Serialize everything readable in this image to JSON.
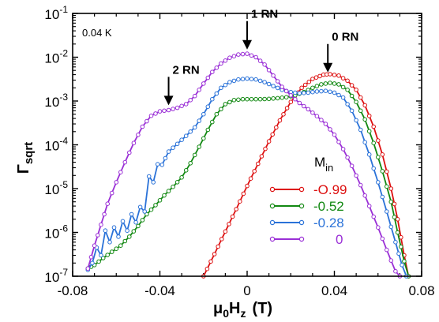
{
  "chart_data": {
    "type": "line",
    "xlabel": {
      "mu": "μ",
      "sub0": "0",
      "H": "H",
      "subz": "z",
      "unit": "(T)"
    },
    "ylabel": {
      "main": "Γ",
      "sub": "sqrt"
    },
    "xlim": [
      -0.08,
      0.08
    ],
    "ylim": [
      1e-07,
      0.1
    ],
    "y_scale": "log",
    "x_ticks": [
      {
        "value": -0.08,
        "label": "-0.08"
      },
      {
        "value": -0.04,
        "label": "-0.04"
      },
      {
        "value": 0,
        "label": "0"
      },
      {
        "value": 0.04,
        "label": "0.04"
      },
      {
        "value": 0.08,
        "label": "0.08"
      }
    ],
    "y_ticks": [
      {
        "value": 1e-07,
        "base": "10",
        "exp": "-7"
      },
      {
        "value": 1e-06,
        "base": "10",
        "exp": "-6"
      },
      {
        "value": 1e-05,
        "base": "10",
        "exp": "-5"
      },
      {
        "value": 0.0001,
        "base": "10",
        "exp": "-4"
      },
      {
        "value": 0.001,
        "base": "10",
        "exp": "-3"
      },
      {
        "value": 0.01,
        "base": "10",
        "exp": "-2"
      },
      {
        "value": 0.1,
        "base": "10",
        "exp": "-1"
      }
    ],
    "temperature_label": "0.04  K",
    "legend": {
      "title_main": "M",
      "title_sub": "in",
      "placement": "lower-right"
    },
    "annotations": [
      {
        "text": "2 RN",
        "x": -0.036,
        "y": 0.0008
      },
      {
        "text": "1 RN",
        "x": 0.0,
        "y": 0.015
      },
      {
        "text": "0 RN",
        "x": 0.037,
        "y": 0.0045
      }
    ],
    "series": [
      {
        "name": "-O.99",
        "color": "#dd1111",
        "points": [
          [
            -0.02,
            1e-07
          ],
          [
            -0.015,
            3.2e-07
          ],
          [
            -0.01,
            1.05e-06
          ],
          [
            -0.005,
            3.4e-06
          ],
          [
            0,
            1.15e-05
          ],
          [
            0.005,
            3.7e-05
          ],
          [
            0.01,
            0.00012
          ],
          [
            0.015,
            0.00036
          ],
          [
            0.02,
            0.00095
          ],
          [
            0.025,
            0.002
          ],
          [
            0.03,
            0.0032
          ],
          [
            0.035,
            0.004
          ],
          [
            0.038,
            0.0041
          ],
          [
            0.042,
            0.0038
          ],
          [
            0.046,
            0.0029
          ],
          [
            0.05,
            0.0018
          ],
          [
            0.054,
            0.0008
          ],
          [
            0.058,
            0.00026
          ],
          [
            0.062,
            6e-05
          ],
          [
            0.066,
            1e-05
          ],
          [
            0.069,
            2e-06
          ],
          [
            0.072,
            3e-07
          ],
          [
            0.074,
            1e-07
          ]
        ]
      },
      {
        "name": "-0.52",
        "color": "#118811",
        "points": [
          [
            -0.073,
            1.5e-07
          ],
          [
            -0.07,
            1.8e-07
          ],
          [
            -0.066,
            2.6e-07
          ],
          [
            -0.062,
            3.6e-07
          ],
          [
            -0.058,
            5e-07
          ],
          [
            -0.054,
            8e-07
          ],
          [
            -0.05,
            1.4e-06
          ],
          [
            -0.046,
            2.6e-06
          ],
          [
            -0.042,
            4.2e-06
          ],
          [
            -0.038,
            7e-06
          ],
          [
            -0.034,
            1.1e-05
          ],
          [
            -0.03,
            1.8e-05
          ],
          [
            -0.026,
            3.8e-05
          ],
          [
            -0.022,
            9e-05
          ],
          [
            -0.018,
            0.00022
          ],
          [
            -0.014,
            0.0005
          ],
          [
            -0.01,
            0.00085
          ],
          [
            -0.006,
            0.00105
          ],
          [
            -0.002,
            0.0011
          ],
          [
            0.002,
            0.0011
          ],
          [
            0.006,
            0.0011
          ],
          [
            0.01,
            0.00112
          ],
          [
            0.014,
            0.00116
          ],
          [
            0.018,
            0.00122
          ],
          [
            0.022,
            0.00135
          ],
          [
            0.026,
            0.0016
          ],
          [
            0.03,
            0.002
          ],
          [
            0.034,
            0.0024
          ],
          [
            0.038,
            0.0026
          ],
          [
            0.042,
            0.0024
          ],
          [
            0.046,
            0.0018
          ],
          [
            0.05,
            0.00095
          ],
          [
            0.054,
            0.00038
          ],
          [
            0.058,
            0.00011
          ],
          [
            0.062,
            2.5e-05
          ],
          [
            0.066,
            5e-06
          ],
          [
            0.069,
            1e-06
          ],
          [
            0.072,
            2.2e-07
          ],
          [
            0.074,
            1e-07
          ]
        ]
      },
      {
        "name": "-0.28",
        "color": "#2a72d8",
        "points": [
          [
            -0.073,
            1.4e-07
          ],
          [
            -0.071,
            2e-07
          ],
          [
            -0.069,
            4.5e-07
          ],
          [
            -0.067,
            3e-07
          ],
          [
            -0.065,
            1.1e-06
          ],
          [
            -0.063,
            6e-07
          ],
          [
            -0.061,
            1.3e-06
          ],
          [
            -0.059,
            8e-07
          ],
          [
            -0.057,
            1.8e-06
          ],
          [
            -0.055,
            1.1e-06
          ],
          [
            -0.053,
            2.6e-06
          ],
          [
            -0.051,
            1.7e-06
          ],
          [
            -0.049,
            3.8e-06
          ],
          [
            -0.047,
            3e-06
          ],
          [
            -0.045,
            1.9e-05
          ],
          [
            -0.043,
            1.4e-05
          ],
          [
            -0.041,
            3.6e-05
          ],
          [
            -0.039,
            3.5e-05
          ],
          [
            -0.036,
            7e-05
          ],
          [
            -0.032,
            0.000105
          ],
          [
            -0.028,
            0.00016
          ],
          [
            -0.024,
            0.00025
          ],
          [
            -0.02,
            0.0005
          ],
          [
            -0.016,
            0.0011
          ],
          [
            -0.012,
            0.002
          ],
          [
            -0.008,
            0.0027
          ],
          [
            -0.004,
            0.0031
          ],
          [
            0,
            0.00325
          ],
          [
            0.004,
            0.0031
          ],
          [
            0.008,
            0.0027
          ],
          [
            0.012,
            0.0022
          ],
          [
            0.016,
            0.0018
          ],
          [
            0.02,
            0.0016
          ],
          [
            0.024,
            0.0015
          ],
          [
            0.028,
            0.00155
          ],
          [
            0.032,
            0.00165
          ],
          [
            0.036,
            0.0017
          ],
          [
            0.04,
            0.00155
          ],
          [
            0.044,
            0.0012
          ],
          [
            0.048,
            0.0006
          ],
          [
            0.052,
            0.00022
          ],
          [
            0.056,
            6e-05
          ],
          [
            0.06,
            1.4e-05
          ],
          [
            0.064,
            3e-06
          ],
          [
            0.068,
            6e-07
          ],
          [
            0.071,
            1.8e-07
          ],
          [
            0.073,
            1e-07
          ]
        ]
      },
      {
        "name": "0",
        "color": "#9a2fd6",
        "points": [
          [
            -0.073,
            1.5e-07
          ],
          [
            -0.07,
            5e-07
          ],
          [
            -0.067,
            1.5e-06
          ],
          [
            -0.064,
            4.5e-06
          ],
          [
            -0.06,
            1.4e-05
          ],
          [
            -0.056,
            4e-05
          ],
          [
            -0.052,
            0.00011
          ],
          [
            -0.048,
            0.00026
          ],
          [
            -0.044,
            0.00046
          ],
          [
            -0.04,
            0.00058
          ],
          [
            -0.036,
            0.00062
          ],
          [
            -0.032,
            0.0007
          ],
          [
            -0.028,
            0.00085
          ],
          [
            -0.024,
            0.0013
          ],
          [
            -0.02,
            0.0025
          ],
          [
            -0.016,
            0.0046
          ],
          [
            -0.012,
            0.0072
          ],
          [
            -0.008,
            0.0097
          ],
          [
            -0.004,
            0.0115
          ],
          [
            0,
            0.012
          ],
          [
            0.004,
            0.01
          ],
          [
            0.008,
            0.0068
          ],
          [
            0.012,
            0.0038
          ],
          [
            0.016,
            0.0021
          ],
          [
            0.02,
            0.00135
          ],
          [
            0.024,
            0.0009
          ],
          [
            0.028,
            0.00065
          ],
          [
            0.032,
            0.00045
          ],
          [
            0.036,
            0.0003
          ],
          [
            0.04,
            0.00017
          ],
          [
            0.044,
            8e-05
          ],
          [
            0.048,
            3.3e-05
          ],
          [
            0.052,
            1.2e-05
          ],
          [
            0.056,
            4e-06
          ],
          [
            0.06,
            1.3e-06
          ],
          [
            0.064,
            4e-07
          ],
          [
            0.068,
            1.3e-07
          ],
          [
            0.07,
            1e-07
          ]
        ]
      }
    ]
  }
}
